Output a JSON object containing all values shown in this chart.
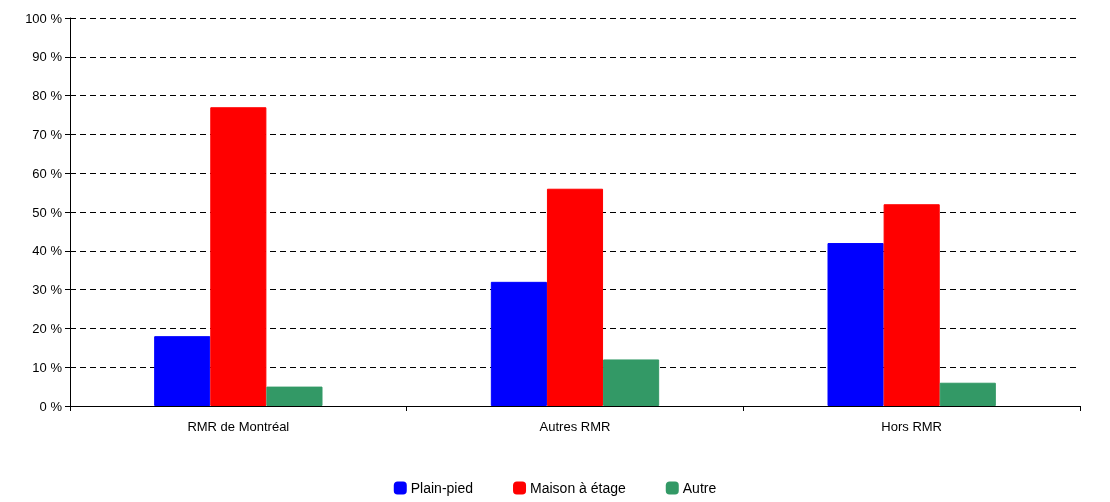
{
  "chart_data": {
    "type": "bar",
    "categories": [
      "RMR de Montréal",
      "Autres RMR",
      "Hors RMR"
    ],
    "series": [
      {
        "name": "Plain-pied",
        "color": "#0000ff",
        "values": [
          18,
          32,
          42
        ]
      },
      {
        "name": "Maison à étage",
        "color": "#ff0000",
        "values": [
          77,
          56,
          52
        ]
      },
      {
        "name": "Autre",
        "color": "#339966",
        "values": [
          5,
          12,
          6
        ]
      }
    ],
    "ylim": [
      0,
      100
    ],
    "yticks": [
      {
        "value": 0,
        "label": "0 %"
      },
      {
        "value": 10,
        "label": "10 %"
      },
      {
        "value": 20,
        "label": "20 %"
      },
      {
        "value": 30,
        "label": "30 %"
      },
      {
        "value": 40,
        "label": "40 %"
      },
      {
        "value": 50,
        "label": "50 %"
      },
      {
        "value": 60,
        "label": "60 %"
      },
      {
        "value": 70,
        "label": "70 %"
      },
      {
        "value": 80,
        "label": "80 %"
      },
      {
        "value": 90,
        "label": "90 %"
      },
      {
        "value": 100,
        "label": "100 %"
      }
    ],
    "grid": "y",
    "legend": "bottom"
  }
}
